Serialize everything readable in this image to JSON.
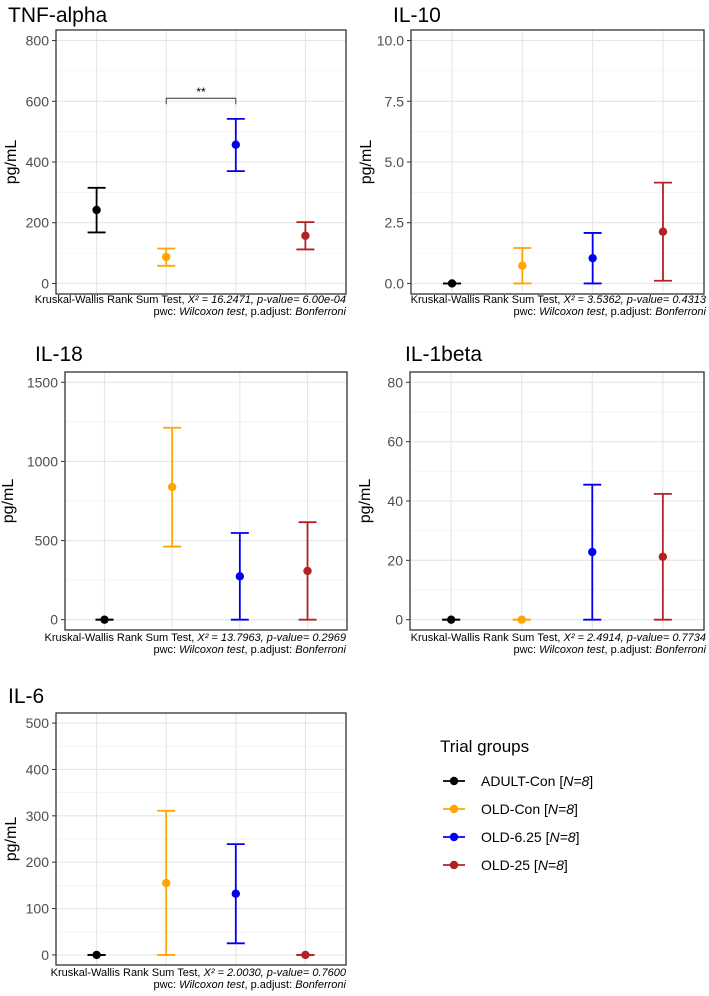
{
  "chart_data": [
    {
      "type": "errorbar",
      "title": "TNF-alpha",
      "ylabel": "pg/mL",
      "ylim": [
        0,
        800
      ],
      "yticks": [
        0,
        200,
        400,
        600,
        800
      ],
      "ytick_labels": [
        "0",
        "200",
        "400",
        "600",
        "800"
      ],
      "groups": [
        {
          "name": "ADULT-Con",
          "mean": 242,
          "low": 168,
          "high": 315
        },
        {
          "name": "OLD-Con",
          "mean": 87,
          "low": 58,
          "high": 115
        },
        {
          "name": "OLD-6.25",
          "mean": 457,
          "low": 370,
          "high": 542
        },
        {
          "name": "OLD-25",
          "mean": 157,
          "low": 112,
          "high": 202
        }
      ],
      "significance": [
        {
          "from": 1,
          "to": 2,
          "y": 610,
          "label": "**"
        }
      ],
      "caption": {
        "line1_prefix": "Kruskal-Wallis Rank Sum Test, ",
        "line1_stat": "X² = 16.2471, p-value= 6.00e-04",
        "line2_prefix": "pwc: ",
        "line2_test": "Wilcoxon test",
        "line2_suffix": ", p.adjust: ",
        "line2_method": "Bonferroni"
      }
    },
    {
      "type": "errorbar",
      "title": "IL-10",
      "ylabel": "pg/mL",
      "ylim": [
        0,
        10
      ],
      "yticks": [
        0,
        2.5,
        5,
        7.5,
        10
      ],
      "ytick_labels": [
        "0.0",
        "2.5",
        "5.0",
        "7.5",
        "10.0"
      ],
      "groups": [
        {
          "name": "ADULT-Con",
          "mean": 0,
          "low": 0,
          "high": 0
        },
        {
          "name": "OLD-Con",
          "mean": 0.73,
          "low": 0,
          "high": 1.46
        },
        {
          "name": "OLD-6.25",
          "mean": 1.04,
          "low": 0,
          "high": 2.08
        },
        {
          "name": "OLD-25",
          "mean": 2.13,
          "low": 0.11,
          "high": 4.15
        }
      ],
      "significance": [],
      "caption": {
        "line1_prefix": "Kruskal-Wallis Rank Sum Test, ",
        "line1_stat": "X² = 3.5362, p-value= 0.4313",
        "line2_prefix": "pwc: ",
        "line2_test": "Wilcoxon test",
        "line2_suffix": ", p.adjust: ",
        "line2_method": "Bonferroni"
      }
    },
    {
      "type": "errorbar",
      "title": "IL-18",
      "ylabel": "pg/mL",
      "ylim": [
        0,
        1500
      ],
      "yticks": [
        0,
        500,
        1000,
        1500
      ],
      "ytick_labels": [
        "0",
        "500",
        "1000",
        "1500"
      ],
      "groups": [
        {
          "name": "ADULT-Con",
          "mean": 0,
          "low": 0,
          "high": 0
        },
        {
          "name": "OLD-Con",
          "mean": 838,
          "low": 462,
          "high": 1213
        },
        {
          "name": "OLD-6.25",
          "mean": 274,
          "low": 0,
          "high": 548
        },
        {
          "name": "OLD-25",
          "mean": 308,
          "low": 0,
          "high": 616
        }
      ],
      "significance": [],
      "caption": {
        "line1_prefix": "Kruskal-Wallis Rank Sum Test, ",
        "line1_stat": "X² = 13.7963, p-value= 0.2969",
        "line2_prefix": "pwc: ",
        "line2_test": "Wilcoxon test",
        "line2_suffix": ", p.adjust: ",
        "line2_method": "Bonferroni"
      }
    },
    {
      "type": "errorbar",
      "title": "IL-1beta",
      "ylabel": "pg/mL",
      "ylim": [
        0,
        80
      ],
      "yticks": [
        0,
        20,
        40,
        60,
        80
      ],
      "ytick_labels": [
        "0",
        "20",
        "40",
        "60",
        "80"
      ],
      "groups": [
        {
          "name": "ADULT-Con",
          "mean": 0,
          "low": 0,
          "high": 0
        },
        {
          "name": "OLD-Con",
          "mean": 0,
          "low": 0,
          "high": 0
        },
        {
          "name": "OLD-6.25",
          "mean": 22.8,
          "low": 0,
          "high": 45.5
        },
        {
          "name": "OLD-25",
          "mean": 21.2,
          "low": 0,
          "high": 42.4
        }
      ],
      "significance": [],
      "caption": {
        "line1_prefix": "Kruskal-Wallis Rank Sum Test, ",
        "line1_stat": "X² = 2.4914, p-value= 0.7734",
        "line2_prefix": "pwc: ",
        "line2_test": "Wilcoxon test",
        "line2_suffix": ", p.adjust: ",
        "line2_method": "Bonferroni"
      }
    },
    {
      "type": "errorbar",
      "title": "IL-6",
      "ylabel": "pg/mL",
      "ylim": [
        0,
        500
      ],
      "yticks": [
        0,
        100,
        200,
        300,
        400,
        500
      ],
      "ytick_labels": [
        "0",
        "100",
        "200",
        "300",
        "400",
        "500"
      ],
      "groups": [
        {
          "name": "ADULT-Con",
          "mean": 0,
          "low": 0,
          "high": 0
        },
        {
          "name": "OLD-Con",
          "mean": 155,
          "low": 0,
          "high": 311
        },
        {
          "name": "OLD-6.25",
          "mean": 132,
          "low": 25,
          "high": 239
        },
        {
          "name": "OLD-25",
          "mean": 0,
          "low": 0,
          "high": 0
        }
      ],
      "significance": [],
      "caption": {
        "line1_prefix": "Kruskal-Wallis Rank Sum Test, ",
        "line1_stat": "X² = 2.0030, p-value= 0.7600",
        "line2_prefix": "pwc: ",
        "line2_test": "Wilcoxon test",
        "line2_suffix": ", p.adjust: ",
        "line2_method": "Bonferroni"
      }
    }
  ],
  "legend": {
    "title": "Trial groups",
    "items": [
      {
        "name": "ADULT-Con",
        "n": "N=8",
        "color": "#000000"
      },
      {
        "name": "OLD-Con",
        "n": "N=8",
        "color": "#FFA500"
      },
      {
        "name": "OLD-6.25",
        "n": "N=8",
        "color": "#0000EE"
      },
      {
        "name": "OLD-25",
        "n": "N=8",
        "color": "#B22222"
      }
    ]
  }
}
